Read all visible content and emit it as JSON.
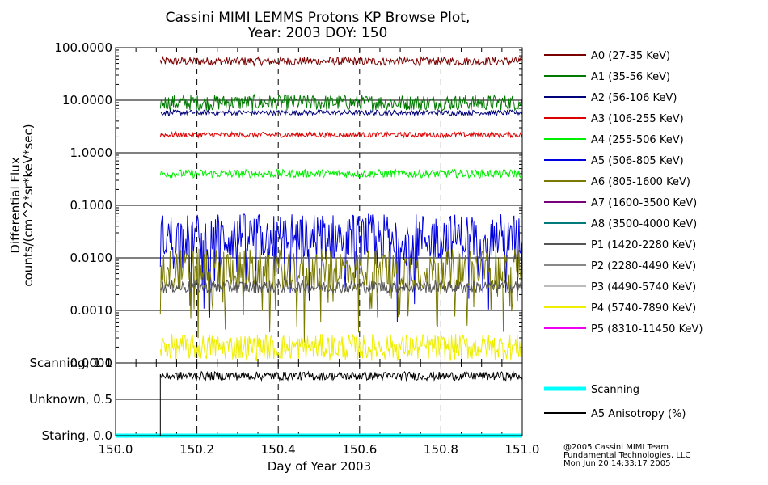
{
  "chart_data": {
    "type": "line",
    "title": [
      "Cassini MIMI LEMMS Protons KP Browse Plot,",
      "Year: 2003 DOY: 150"
    ],
    "xlabel": "Day of Year 2003",
    "xlim": [
      150.0,
      151.0
    ],
    "x_ticks": [
      "150.0",
      "150.2",
      "150.4",
      "150.6",
      "150.8",
      "151.0"
    ],
    "data_start": 150.11,
    "flux_panel": {
      "ylabel": [
        "Differential Flux",
        "counts/(cm^2*sr*keV*sec)"
      ],
      "yscale": "log",
      "ylim": [
        0.0001,
        100
      ],
      "y_ticks": [
        "100.0000",
        "10.0000",
        "1.0000",
        "0.1000",
        "0.0100",
        "0.0010",
        "0.0001"
      ],
      "series": [
        {
          "name": "A0 (27-35 KeV)",
          "color": "#7a0000",
          "level": 55,
          "spread": 0.08
        },
        {
          "name": "A1 (35-56 KeV)",
          "color": "#007a00",
          "level": 9,
          "spread": 0.15
        },
        {
          "name": "A2 (56-106 KeV)",
          "color": "#00007a",
          "level": 5.8,
          "spread": 0.05
        },
        {
          "name": "A3 (106-255 KeV)",
          "color": "#dd0000",
          "level": 2.2,
          "spread": 0.05
        },
        {
          "name": "A4 (255-506 KeV)",
          "color": "#00ee00",
          "level": 0.4,
          "spread": 0.08
        },
        {
          "name": "A5 (506-805 KeV)",
          "color": "#0000dd",
          "level": 0.025,
          "spread": 0.45
        },
        {
          "name": "A6 (805-1600 KeV)",
          "color": "#7a7a00",
          "level": 0.006,
          "spread": 0.4
        },
        {
          "name": "A7 (1600-3500 KeV)",
          "color": "#7a007a"
        },
        {
          "name": "A8 (3500-4000 KeV)",
          "color": "#007a7a"
        },
        {
          "name": "P1 (1420-2280 KeV)",
          "color": "#555555",
          "level": 0.0028,
          "spread": 0.12
        },
        {
          "name": "P2 (2280-4490 KeV)",
          "color": "#888888"
        },
        {
          "name": "P3 (4490-5740 KeV)",
          "color": "#bbbbbb"
        },
        {
          "name": "P4 (5740-7890 KeV)",
          "color": "#eeee00",
          "level": 0.0002,
          "spread": 0.25
        },
        {
          "name": "P5 (8310-11450 KeV)",
          "color": "#ee00ee"
        }
      ]
    },
    "status_panel": {
      "y_ticks": [
        "Scanning, 1.0",
        "Unknown, 0.5",
        "Staring, 0.0"
      ],
      "ylim": [
        0,
        1
      ],
      "series": [
        {
          "name": "Scanning",
          "color": "#00ffff",
          "value": 0.0
        },
        {
          "name": "A5 Anisotropy (%)",
          "color": "#000000",
          "level": 0.82,
          "spread": 0.06
        }
      ]
    }
  },
  "credit": [
    "@2005 Cassini MIMI Team",
    "Fundamental Technologies, LLC",
    "Mon Jun 20 14:33:17 2005"
  ]
}
